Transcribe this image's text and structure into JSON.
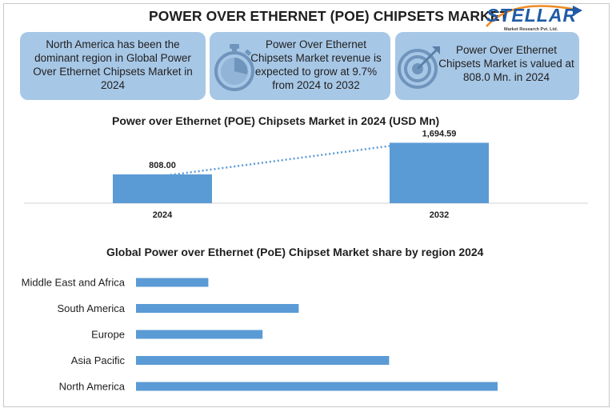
{
  "header": {
    "title": "POWER OVER ETHERNET (POE) CHIPSETS MARKET",
    "logo_name": "STELLAR",
    "logo_subtitle": "Market Research Pvt. Ltd."
  },
  "cards": [
    {
      "text": "North America has been the dominant region in Global Power Over Ethernet Chipsets Market in 2024",
      "icon": ""
    },
    {
      "text": "Power Over Ethernet Chipsets Market revenue is expected to grow at 9.7% from 2024 to 2032",
      "icon": "stopwatch-icon"
    },
    {
      "text": "Power Over Ethernet Chipsets Market is valued at 808.0 Mn. in 2024",
      "icon": "target-icon"
    }
  ],
  "colors": {
    "bar": "#5b9bd5",
    "card_bg": "#a7c7e6",
    "logo_blue": "#1f5aa6",
    "logo_orange": "#f08a24",
    "trend_line": "#5b9bd5"
  },
  "chart_data": [
    {
      "type": "bar",
      "title": "Power over Ethernet (POE) Chipsets Market in 2024 (USD Mn)",
      "categories": [
        "2024",
        "2032"
      ],
      "values": [
        808.0,
        1694.59
      ],
      "data_labels": [
        "808.00",
        "1,694.59"
      ],
      "ylim": [
        0,
        1750
      ],
      "trend_line": true,
      "grid": false,
      "xlabel": "",
      "ylabel": ""
    },
    {
      "type": "bar",
      "orientation": "horizontal",
      "title": "Global Power over Ethernet (PoE) Chipset Market share by  region 2024",
      "categories": [
        "Middle East and Africa",
        "South America",
        "Europe",
        "Asia Pacific",
        "North America"
      ],
      "values": [
        20,
        45,
        35,
        70,
        100
      ],
      "xlim": [
        0,
        100
      ],
      "grid": false,
      "xlabel": "",
      "ylabel": ""
    }
  ]
}
